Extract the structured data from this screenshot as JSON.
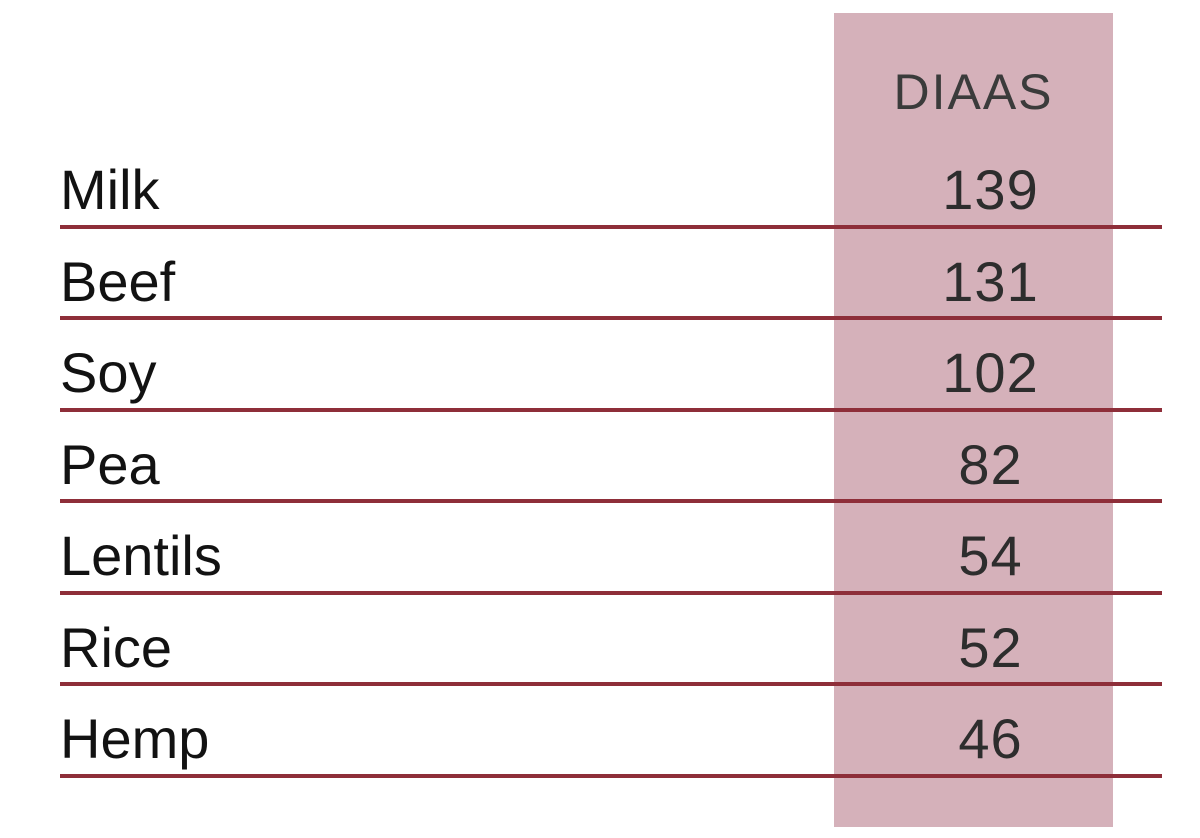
{
  "chart_data": {
    "type": "table",
    "column_header": "DIAAS",
    "categories": [
      "Milk",
      "Beef",
      "Soy",
      "Pea",
      "Lentils",
      "Rice",
      "Hemp"
    ],
    "values": [
      139,
      131,
      102,
      82,
      54,
      52,
      46
    ],
    "rows": [
      {
        "label": "Milk",
        "value": "139"
      },
      {
        "label": "Beef",
        "value": "131"
      },
      {
        "label": "Soy",
        "value": "102"
      },
      {
        "label": "Pea",
        "value": "82"
      },
      {
        "label": "Lentils",
        "value": "54"
      },
      {
        "label": "Rice",
        "value": "52"
      },
      {
        "label": "Hemp",
        "value": "46"
      }
    ],
    "layout": {
      "highlight_column": true,
      "grid": "horizontal-lines-only",
      "legend": "none"
    }
  },
  "colors": {
    "background": "#ffffff",
    "highlight_column": "#d5b1ba",
    "row_divider": "#8e2e39",
    "label_text": "#121212",
    "value_text": "#2d2d2d",
    "header_text": "#3b3b3b"
  }
}
